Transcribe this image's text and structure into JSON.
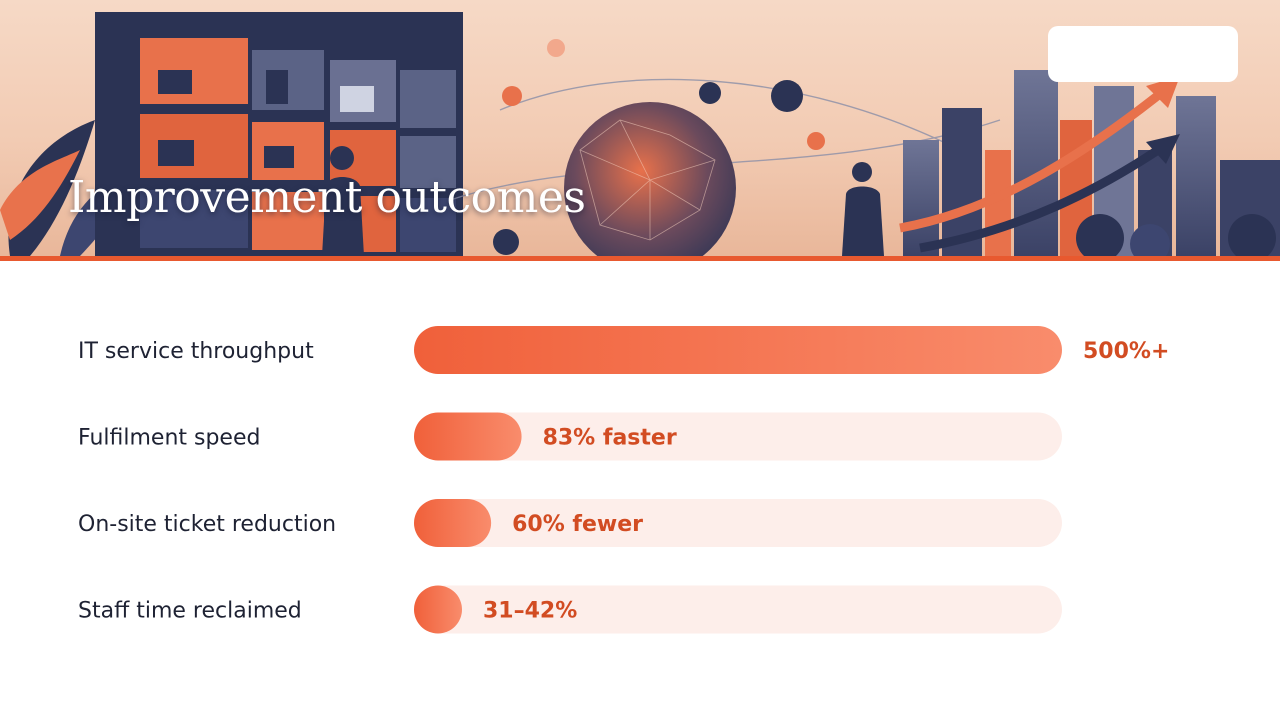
{
  "slide": {
    "title": "Improvement outcomes"
  },
  "colors": {
    "accent": "#e8592f",
    "bar_start": "#f0603a",
    "bar_end": "#f98c6c",
    "track": "#fdeeea",
    "label_text": "#1e2233",
    "value_text": "#d24c22",
    "navy": "#2b3354"
  },
  "icons": [
    "device-cabinet-illustration",
    "globe-network-icon",
    "growth-arrow-icon",
    "city-skyline-illustration",
    "businessman-figure-icon"
  ],
  "chart_data": {
    "type": "bar",
    "orientation": "horizontal",
    "categories": [
      "IT service throughput",
      "Fulfilment speed",
      "On-site ticket reduction",
      "Staff time reclaimed"
    ],
    "values": [
      1.0,
      0.166,
      0.119,
      0.074
    ],
    "value_labels": [
      "500%+",
      "83% faster",
      "60% fewer",
      "31–42%"
    ],
    "xlim": [
      0,
      1
    ],
    "grid": false,
    "legend": "none"
  }
}
